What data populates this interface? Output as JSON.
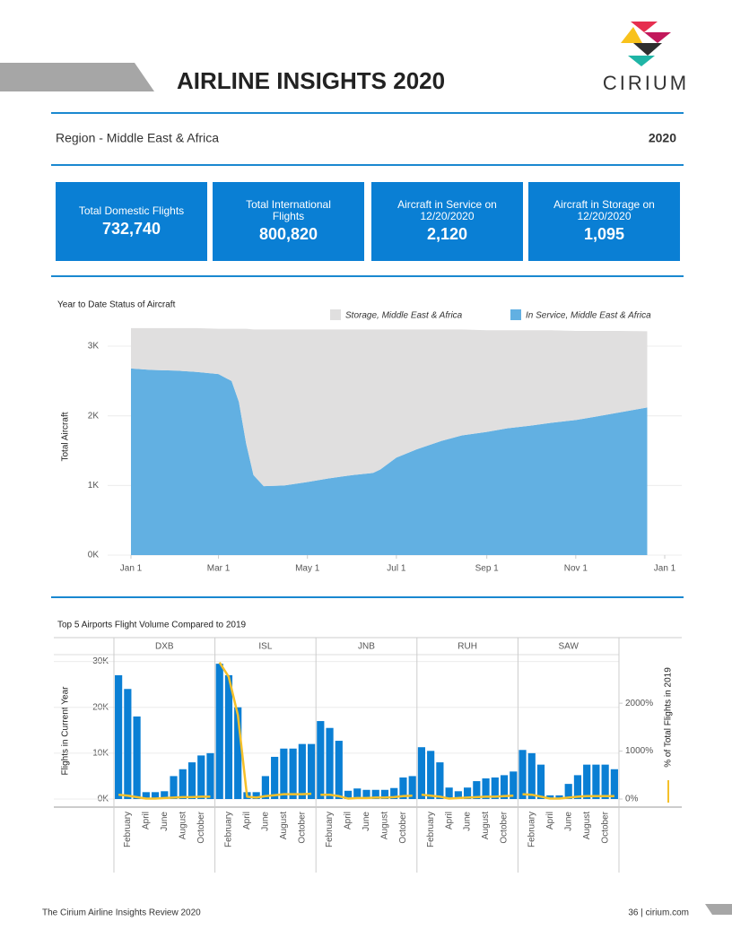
{
  "header": {
    "title": "AIRLINE INSIGHTS 2020",
    "logo": "CIRIUM"
  },
  "region": "Region - Middle East & Africa",
  "year": "2020",
  "kpis": [
    {
      "label": "Total Domestic Flights",
      "value": "732,740"
    },
    {
      "label": "Total International Flights",
      "value": "800,820"
    },
    {
      "label": "Aircraft in Service on 12/20/2020",
      "value": "2,120"
    },
    {
      "label": "Aircraft in Storage on 12/20/2020",
      "value": "1,095"
    }
  ],
  "chart_data": [
    {
      "type": "area",
      "stacked": true,
      "title": "Year to Date Status of Aircraft",
      "ylabel": "Total Aircraft",
      "x": [
        0,
        14,
        31,
        45,
        60,
        69,
        74,
        79,
        84,
        91,
        105,
        121,
        135,
        152,
        166,
        171,
        182,
        196,
        213,
        227,
        244,
        258,
        274,
        288,
        305,
        319,
        335,
        354
      ],
      "xlim": [
        0,
        366
      ],
      "xticks": [
        {
          "value": 0,
          "label": "Jan 1"
        },
        {
          "value": 60,
          "label": "Mar 1"
        },
        {
          "value": 121,
          "label": "May 1"
        },
        {
          "value": 182,
          "label": "Jul 1"
        },
        {
          "value": 244,
          "label": "Sep 1"
        },
        {
          "value": 305,
          "label": "Nov 1"
        },
        {
          "value": 366,
          "label": "Jan 1"
        }
      ],
      "ylim": [
        0,
        3400
      ],
      "yticks": [
        {
          "value": 0,
          "label": "0K"
        },
        {
          "value": 1000,
          "label": "1K"
        },
        {
          "value": 2000,
          "label": "2K"
        },
        {
          "value": 3000,
          "label": "3K"
        }
      ],
      "grid": true,
      "series": [
        {
          "name": "In Service, Middle East & Africa",
          "color": "#62b0e2",
          "values": [
            2680,
            2660,
            2650,
            2630,
            2600,
            2500,
            2200,
            1600,
            1150,
            990,
            1000,
            1050,
            1100,
            1150,
            1180,
            1230,
            1400,
            1520,
            1640,
            1720,
            1770,
            1820,
            1860,
            1900,
            1940,
            1990,
            2050,
            2120
          ]
        },
        {
          "name": "Storage, Middle East & Africa",
          "color": "#e0dfdf",
          "values": [
            580,
            600,
            610,
            630,
            650,
            750,
            1050,
            1650,
            2090,
            2250,
            2240,
            2190,
            2140,
            2090,
            2060,
            2010,
            1840,
            1720,
            1600,
            1520,
            1460,
            1410,
            1370,
            1330,
            1280,
            1230,
            1170,
            1095
          ]
        }
      ]
    },
    {
      "type": "faceted_bar_line",
      "title": "Top 5 Airports Flight Volume Compared to 2019",
      "ylabel": "Flights in Current Year",
      "y2label": "% of Total Flights in 2019",
      "categories": [
        null,
        "February",
        null,
        "April",
        null,
        "June",
        null,
        "August",
        null,
        "October",
        null
      ],
      "ylim": [
        0,
        35000
      ],
      "yticks": [
        {
          "value": 0,
          "label": "0K"
        },
        {
          "value": 10000,
          "label": "10K"
        },
        {
          "value": 20000,
          "label": "20K"
        },
        {
          "value": 30000,
          "label": "30K"
        }
      ],
      "y2lim": [
        0,
        3350
      ],
      "y2ticks": [
        {
          "value": 0,
          "label": "0%"
        },
        {
          "value": 1000,
          "label": "1000%"
        },
        {
          "value": 2000,
          "label": "2000%"
        }
      ],
      "bar_color": "#0a7fd4",
      "line_color": "#f5c02a",
      "grid": true,
      "panels": [
        {
          "name": "DXB",
          "values": [
            27000,
            24000,
            18000,
            1500,
            1500,
            1700,
            5000,
            6500,
            8000,
            9500,
            10000
          ],
          "pct": [
            90,
            70,
            40,
            10,
            10,
            20,
            30,
            40,
            40,
            50,
            50
          ]
        },
        {
          "name": "ISL",
          "values": [
            29500,
            27000,
            20000,
            1500,
            1500,
            5000,
            9200,
            11000,
            11000,
            12000,
            12000
          ],
          "pct": [
            2850,
            2550,
            1750,
            50,
            30,
            60,
            80,
            100,
            100,
            100,
            110
          ]
        },
        {
          "name": "JNB",
          "values": [
            17000,
            15500,
            12700,
            1800,
            2300,
            2000,
            2000,
            2000,
            2400,
            4700,
            5000
          ],
          "pct": [
            90,
            90,
            60,
            10,
            20,
            20,
            30,
            30,
            40,
            60,
            70
          ]
        },
        {
          "name": "RUH",
          "values": [
            11300,
            10500,
            8000,
            2500,
            1700,
            2500,
            3900,
            4500,
            4700,
            5200,
            6000
          ],
          "pct": [
            90,
            70,
            50,
            10,
            20,
            30,
            40,
            50,
            50,
            60,
            70
          ]
        },
        {
          "name": "SAW",
          "values": [
            10700,
            10000,
            7500,
            800,
            800,
            3300,
            5200,
            7500,
            7500,
            7500,
            6500
          ],
          "pct": [
            100,
            90,
            50,
            10,
            10,
            30,
            50,
            60,
            60,
            60,
            60
          ]
        }
      ]
    }
  ],
  "footer": {
    "left": "The Cirium Airline Insights Review 2020",
    "right": "36 | cirium.com"
  }
}
